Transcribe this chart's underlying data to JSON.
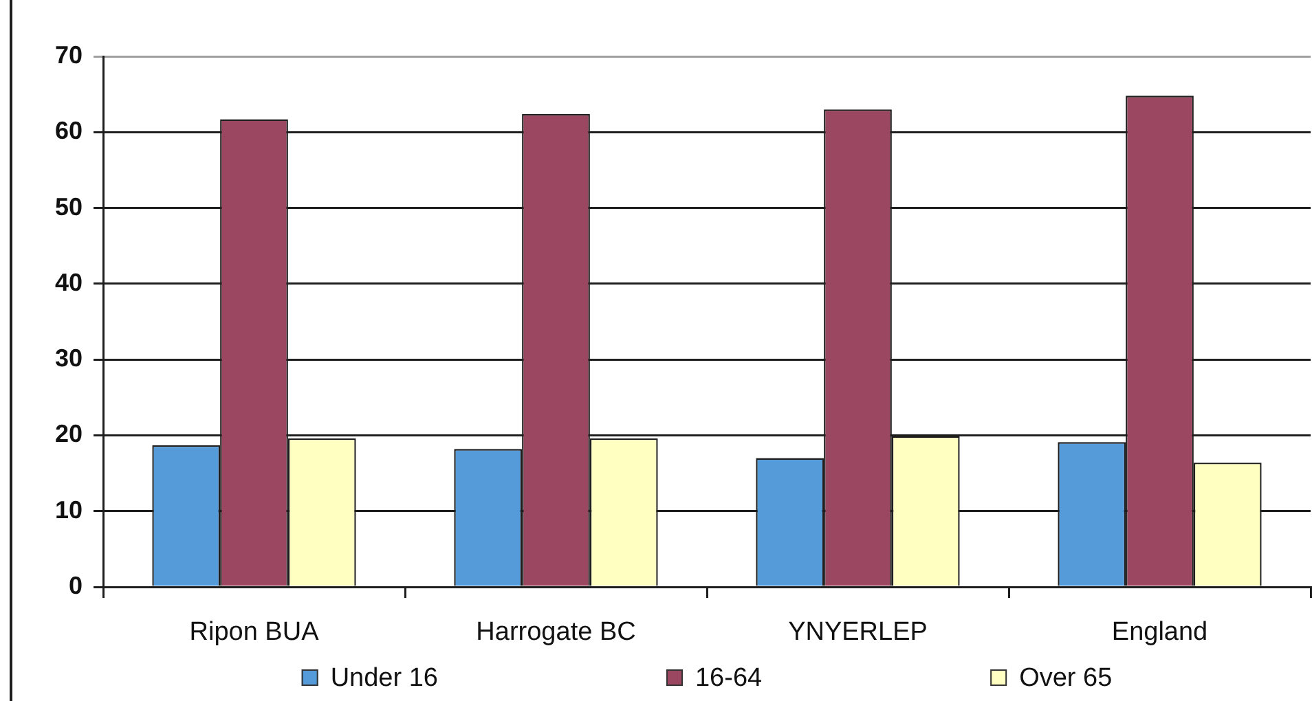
{
  "chart_data": {
    "type": "bar",
    "categories": [
      "Ripon BUA",
      "Harrogate BC",
      "YNYERLEP",
      "England"
    ],
    "series": [
      {
        "name": "Under 16",
        "color": "#559ad9",
        "values": [
          18.7,
          18.2,
          17.0,
          19.1
        ]
      },
      {
        "name": "16-64",
        "color": "#9c4761",
        "values": [
          61.7,
          62.4,
          63.0,
          64.8
        ]
      },
      {
        "name": "Over 65",
        "color": "#ffffc2",
        "values": [
          19.6,
          19.6,
          19.9,
          16.4
        ]
      }
    ],
    "ylim": [
      0,
      70
    ],
    "yticks": [
      0,
      10,
      20,
      30,
      40,
      50,
      60,
      70
    ],
    "grid": "y",
    "legend": "bottom"
  }
}
